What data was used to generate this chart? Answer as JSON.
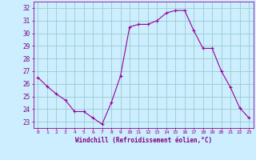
{
  "x": [
    0,
    1,
    2,
    3,
    4,
    5,
    6,
    7,
    8,
    9,
    10,
    11,
    12,
    13,
    14,
    15,
    16,
    17,
    18,
    19,
    20,
    21,
    22,
    23
  ],
  "y": [
    26.5,
    25.8,
    25.2,
    24.7,
    23.8,
    23.8,
    23.3,
    22.8,
    24.5,
    26.6,
    30.5,
    30.7,
    30.7,
    31.0,
    31.6,
    31.8,
    31.8,
    30.2,
    28.8,
    28.8,
    27.0,
    25.7,
    24.1,
    23.3
  ],
  "line_color": "#990099",
  "bg_color": "#cceeff",
  "grid_color": "#99cccc",
  "xlabel": "Windchill (Refroidissement éolien,°C)",
  "ylim": [
    22.5,
    32.5
  ],
  "yticks": [
    23,
    24,
    25,
    26,
    27,
    28,
    29,
    30,
    31,
    32
  ],
  "xticks": [
    0,
    1,
    2,
    3,
    4,
    5,
    6,
    7,
    8,
    9,
    10,
    11,
    12,
    13,
    14,
    15,
    16,
    17,
    18,
    19,
    20,
    21,
    22,
    23
  ],
  "tick_color": "#800080",
  "label_color": "#800080"
}
